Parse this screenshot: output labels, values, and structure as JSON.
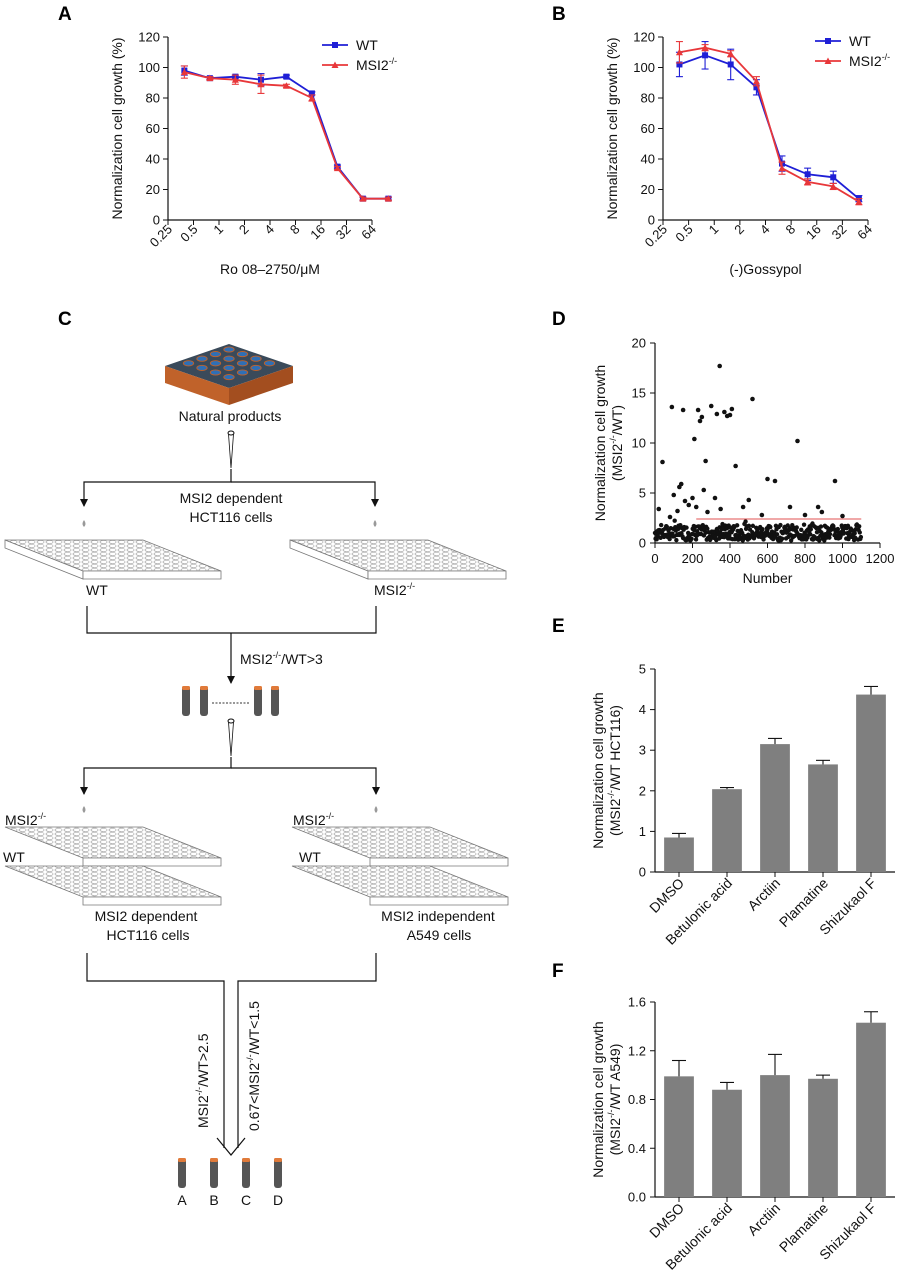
{
  "panels": {
    "A": "A",
    "B": "B",
    "C": "C",
    "D": "D",
    "E": "E",
    "F": "F"
  },
  "colors": {
    "wt": "#1f1fd6",
    "msi2": "#e8373a",
    "bar": "#7f7f7f",
    "threshold": "#e05050",
    "plate_side": "#c0622a",
    "plate_top": "#3a4a5a",
    "well": "#2f6fb5"
  },
  "chart_data": [
    {
      "id": "A",
      "type": "line",
      "x_tick_labels": [
        "0.25",
        "0.5",
        "1",
        "2",
        "4",
        "8",
        "16",
        "32",
        "64"
      ],
      "x_log2_range": [
        -2,
        6
      ],
      "xlabel": "Ro 08–2750/μM",
      "ylabel": "Normalization cell growth (%)",
      "ylim": [
        0,
        120
      ],
      "y_ticks": [
        "0",
        "20",
        "40",
        "60",
        "80",
        "100",
        "120"
      ],
      "legend": [
        {
          "label": "WT",
          "sup": ""
        },
        {
          "label": "MSI2",
          "sup": "-/-"
        }
      ],
      "series": [
        {
          "name": "WT",
          "x": [
            0.39,
            0.78,
            1.56,
            3.13,
            6.25,
            12.5,
            25,
            50,
            100
          ],
          "y": [
            98,
            93,
            94,
            92,
            94,
            83,
            35,
            14,
            14
          ],
          "err": [
            3,
            1,
            1,
            4,
            1,
            1,
            1,
            1,
            1
          ]
        },
        {
          "name": "MSI2-/-",
          "x": [
            0.39,
            0.78,
            1.56,
            3.13,
            6.25,
            12.5,
            25,
            50,
            100
          ],
          "y": [
            97,
            93,
            92,
            89,
            88,
            80,
            34,
            14,
            14
          ],
          "err": [
            4,
            1,
            3,
            6,
            1,
            2,
            1,
            1,
            1
          ]
        }
      ]
    },
    {
      "id": "B",
      "type": "line",
      "x_tick_labels": [
        "0.25",
        "0.5",
        "1",
        "2",
        "4",
        "8",
        "16",
        "32",
        "64"
      ],
      "x_log2_range": [
        -2,
        6
      ],
      "xlabel": "(-)Gossypol",
      "ylabel": "Normalization cell growth (%)",
      "ylim": [
        0,
        120
      ],
      "y_ticks": [
        "0",
        "20",
        "40",
        "60",
        "80",
        "100",
        "120"
      ],
      "legend": [
        {
          "label": "WT",
          "sup": ""
        },
        {
          "label": "MSI2",
          "sup": "-/-"
        }
      ],
      "series": [
        {
          "name": "WT",
          "x": [
            0.39,
            0.78,
            1.56,
            3.13,
            6.25,
            12.5,
            25,
            50
          ],
          "y": [
            102,
            108,
            102,
            87,
            37,
            30,
            28,
            14
          ],
          "err": [
            8,
            9,
            10,
            5,
            5,
            4,
            4,
            2
          ]
        },
        {
          "name": "MSI2-/-",
          "x": [
            0.39,
            0.78,
            1.56,
            3.13,
            6.25,
            12.5,
            25,
            50
          ],
          "y": [
            110,
            113,
            109,
            91,
            34,
            25,
            22,
            12
          ],
          "err": [
            7,
            2,
            2,
            3,
            4,
            2,
            2,
            2
          ]
        }
      ]
    },
    {
      "id": "D",
      "type": "scatter",
      "xlabel": "Number",
      "ylabel": "Normalization cell growth",
      "ylabel2_prefix": "(MSI2",
      "ylabel2_sup": "-/-",
      "ylabel2_suffix": "/WT)",
      "xlim": [
        0,
        1200
      ],
      "ylim": [
        0,
        20
      ],
      "x_ticks": [
        "0",
        "200",
        "400",
        "600",
        "800",
        "1000",
        "1200"
      ],
      "y_ticks": [
        "0",
        "5",
        "10",
        "15",
        "20"
      ],
      "threshold": 2.4,
      "outliers": [
        [
          20,
          3.4
        ],
        [
          40,
          8.1
        ],
        [
          80,
          2.6
        ],
        [
          90,
          13.6
        ],
        [
          100,
          4.8
        ],
        [
          120,
          3.2
        ],
        [
          130,
          5.6
        ],
        [
          140,
          5.9
        ],
        [
          150,
          13.3
        ],
        [
          160,
          4.2
        ],
        [
          180,
          3.8
        ],
        [
          200,
          4.5
        ],
        [
          210,
          10.4
        ],
        [
          220,
          3.6
        ],
        [
          230,
          13.3
        ],
        [
          240,
          12.2
        ],
        [
          250,
          12.6
        ],
        [
          260,
          5.3
        ],
        [
          270,
          8.2
        ],
        [
          280,
          3.1
        ],
        [
          300,
          13.7
        ],
        [
          320,
          4.5
        ],
        [
          330,
          12.9
        ],
        [
          345,
          17.7
        ],
        [
          350,
          3.4
        ],
        [
          370,
          13.1
        ],
        [
          385,
          12.7
        ],
        [
          400,
          12.8
        ],
        [
          410,
          13.4
        ],
        [
          430,
          7.7
        ],
        [
          470,
          3.6
        ],
        [
          500,
          4.3
        ],
        [
          520,
          14.4
        ],
        [
          570,
          2.8
        ],
        [
          600,
          6.4
        ],
        [
          640,
          6.2
        ],
        [
          720,
          3.6
        ],
        [
          760,
          10.2
        ],
        [
          800,
          2.8
        ],
        [
          870,
          3.6
        ],
        [
          890,
          3.1
        ],
        [
          960,
          6.2
        ],
        [
          1000,
          2.7
        ]
      ]
    },
    {
      "id": "E",
      "type": "bar",
      "categories": [
        "DMSO",
        "Betulonic acid",
        "Arctiin",
        "Plamatine",
        "Shizukaol F"
      ],
      "values": [
        0.85,
        2.04,
        3.15,
        2.65,
        4.37
      ],
      "err": [
        0.1,
        0.04,
        0.14,
        0.1,
        0.2
      ],
      "ylim": [
        0,
        5
      ],
      "y_ticks": [
        "0",
        "1",
        "2",
        "3",
        "4",
        "5"
      ],
      "ylabel": "Normalization cell growth",
      "ylabel2_prefix": "(MSI2",
      "ylabel2_sup": "-/-",
      "ylabel2_suffix": "/WT HCT116)"
    },
    {
      "id": "F",
      "type": "bar",
      "categories": [
        "DMSO",
        "Betulonic acid",
        "Arctiin",
        "Plamatine",
        "Shizukaol F"
      ],
      "values": [
        0.99,
        0.88,
        1.0,
        0.97,
        1.43
      ],
      "err": [
        0.13,
        0.06,
        0.17,
        0.03,
        0.09
      ],
      "ylim": [
        0,
        1.6
      ],
      "y_ticks": [
        "0.0",
        "0.4",
        "0.8",
        "1.2",
        "1.6"
      ],
      "ylabel": "Normalization cell growth",
      "ylabel2_prefix": "(MSI2",
      "ylabel2_sup": "-/-",
      "ylabel2_suffix": "/WT A549)"
    }
  ],
  "flow": {
    "natural_products": "Natural products",
    "msi2_dependent": "MSI2 dependent",
    "hct116_cells": "HCT116 cells",
    "hct116_cells_2": "HCT116 cells",
    "msi2_dependent_2": "MSI2 dependent",
    "msi2_independent": "MSI2 independent",
    "a549_cells": "A549 cells",
    "wt": "WT",
    "msi2": "MSI2",
    "sup": "-/-",
    "ratio1_suffix": "/WT>3",
    "ratio2_suffix": "/WT>2.5",
    "ratio3_prefix": "0.67<MSI2",
    "ratio3_suffix": "/WT<1.5",
    "final_labels": [
      "A",
      "B",
      "C",
      "D"
    ]
  }
}
